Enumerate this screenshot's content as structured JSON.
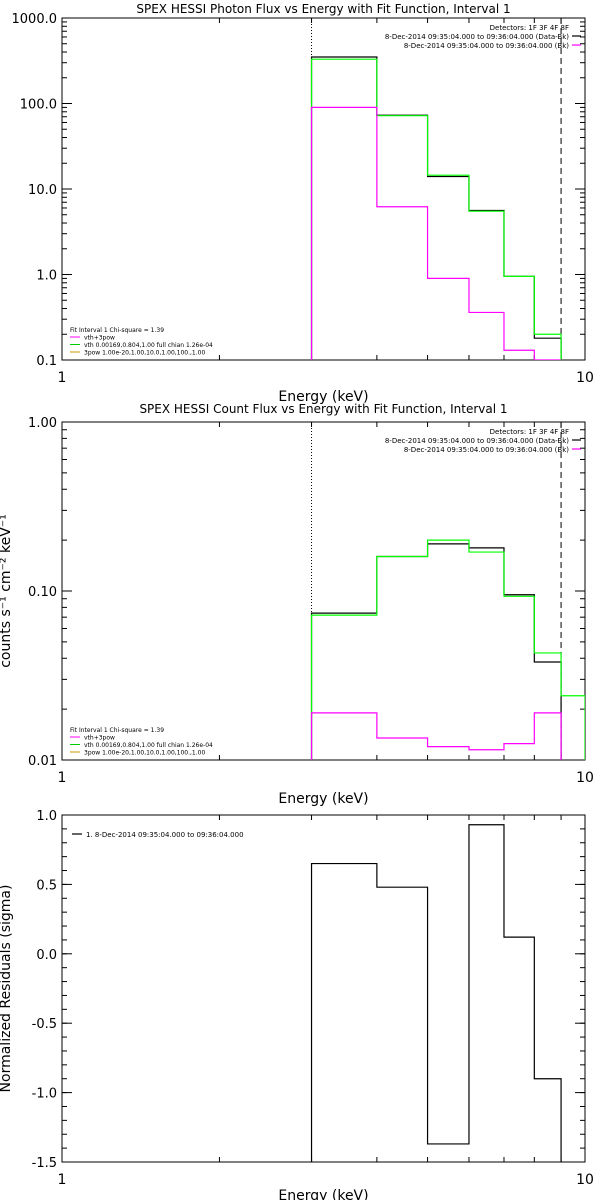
{
  "chart_data": [
    {
      "type": "line",
      "title": "SPEX HESSI Photon Flux vs Energy with Fit Function, Interval 1",
      "xlabel": "Energy (keV)",
      "ylabel": "",
      "xscale": "log",
      "yscale": "log",
      "xlim": [
        1,
        10
      ],
      "ylim": [
        0.1,
        1000
      ],
      "xticks": [
        {
          "v": 1,
          "label": "1"
        },
        {
          "v": 10,
          "label": "10"
        }
      ],
      "yticks": [
        {
          "v": 0.1,
          "label": "0.1"
        },
        {
          "v": 1,
          "label": "1.0"
        },
        {
          "v": 10,
          "label": "10.0"
        },
        {
          "v": 100,
          "label": "100.0"
        },
        {
          "v": 1000,
          "label": "1000.0"
        }
      ],
      "vlines": [
        {
          "x": 3.0,
          "style": "dotted"
        },
        {
          "x": 9.0,
          "style": "dashed"
        }
      ],
      "legend_position": "top-right",
      "legend": [
        "Detectors: 1F 3F 4F 8F",
        "8-Dec-2014 09:35:04.000 to 09:36:04.000 (Data-Bk)",
        "8-Dec-2014 09:35:04.000 to 09:36:04.000 (Bk)"
      ],
      "legend_colors": [
        "#000000",
        "#000000",
        "#ff00ff"
      ],
      "fit_position": "bottom-left",
      "fit_info": [
        {
          "text": "Fit Interval 1    Chi-square = 1.39",
          "color": "#000000"
        },
        {
          "text": "vth+3pow",
          "color": "#ff00ff"
        },
        {
          "text": "vth 0.00169,0.804,1.00  full chian 1.26e-04",
          "color": "#00cc00"
        },
        {
          "text": "3pow 1.00e-20,1.00,10.0,1.00,100.,1.00",
          "color": "#cc9900"
        }
      ],
      "edges": [
        3.0,
        3.5,
        4.0,
        4.5,
        5.0,
        5.5,
        6.0,
        6.5,
        7.0,
        7.5,
        8.0,
        8.5,
        9.0
      ],
      "series": [
        {
          "color": "#000000",
          "values": [
            350,
            350,
            73,
            73,
            14,
            14,
            5.6,
            5.6,
            0.95,
            0.95,
            0.18,
            0.18
          ]
        },
        {
          "color": "#00ff00",
          "values": [
            330,
            330,
            72,
            72,
            14.5,
            14.5,
            5.5,
            5.5,
            0.95,
            0.95,
            0.2,
            0.2
          ]
        },
        {
          "color": "#ff00ff",
          "values": [
            90,
            90,
            6.2,
            6.2,
            0.9,
            0.9,
            0.36,
            0.36,
            0.13,
            0.13,
            0.1,
            0.1
          ]
        }
      ]
    },
    {
      "type": "line",
      "title": "SPEX HESSI Count Flux vs Energy with Fit Function, Interval 1",
      "xlabel": "Energy (keV)",
      "ylabel": "counts s⁻¹ cm⁻² keV⁻¹",
      "xscale": "log",
      "yscale": "log",
      "xlim": [
        1,
        10
      ],
      "ylim": [
        0.01,
        1
      ],
      "xticks": [
        {
          "v": 1,
          "label": "1"
        },
        {
          "v": 10,
          "label": "10"
        }
      ],
      "yticks": [
        {
          "v": 0.01,
          "label": "0.01"
        },
        {
          "v": 0.1,
          "label": "0.10"
        },
        {
          "v": 1,
          "label": "1.00"
        }
      ],
      "vlines": [
        {
          "x": 3.0,
          "style": "dotted"
        },
        {
          "x": 9.0,
          "style": "dashed"
        }
      ],
      "legend_position": "top-right",
      "legend": [
        "Detectors: 1F 3F 4F 8F",
        "8-Dec-2014 09:35:04.000 to 09:36:04.000 (Data-Bk)",
        "8-Dec-2014 09:35:04.000 to 09:36:04.000 (Bk)"
      ],
      "legend_colors": [
        "#000000",
        "#000000",
        "#ff00ff"
      ],
      "fit_position": "bottom-left",
      "fit_info": [
        {
          "text": "Fit Interval 1    Chi-square = 1.39",
          "color": "#000000"
        },
        {
          "text": "vth+3pow",
          "color": "#ff00ff"
        },
        {
          "text": "vth 0.00169,0.804,1.00  full chian 1.26e-04",
          "color": "#00cc00"
        },
        {
          "text": "3pow 1.00e-20,1.00,10.0,1.00,100.,1.00",
          "color": "#cc9900"
        }
      ],
      "edges": [
        3.0,
        3.5,
        4.0,
        4.5,
        5.0,
        5.5,
        6.0,
        6.5,
        7.0,
        7.5,
        8.0,
        8.5,
        9.0,
        10.0
      ],
      "series": [
        {
          "color": "#000000",
          "values": [
            0.074,
            0.074,
            0.16,
            0.16,
            0.19,
            0.19,
            0.18,
            0.18,
            0.095,
            0.095,
            0.038,
            0.038
          ]
        },
        {
          "color": "#00ff00",
          "values": [
            0.072,
            0.072,
            0.16,
            0.16,
            0.2,
            0.2,
            0.17,
            0.17,
            0.093,
            0.093,
            0.043,
            0.043,
            0.024
          ]
        },
        {
          "color": "#ff00ff",
          "values": [
            0.019,
            0.019,
            0.0135,
            0.0135,
            0.012,
            0.012,
            0.0115,
            0.0115,
            0.0125,
            0.0125,
            0.019,
            0.019
          ]
        }
      ]
    },
    {
      "type": "line",
      "title": "",
      "xlabel": "Energy (keV)",
      "ylabel": "Normalized Residuals (sigma)",
      "xscale": "log",
      "yscale": "linear",
      "xlim": [
        1,
        10
      ],
      "ylim": [
        -1.5,
        1.0
      ],
      "xticks": [
        {
          "v": 1,
          "label": "1"
        },
        {
          "v": 10,
          "label": "10"
        }
      ],
      "yticks": [
        {
          "v": -1.5,
          "label": "-1.5"
        },
        {
          "v": -1.0,
          "label": "-1.0"
        },
        {
          "v": -0.5,
          "label": "-0.5"
        },
        {
          "v": 0.0,
          "label": "0.0"
        },
        {
          "v": 0.5,
          "label": "0.5"
        },
        {
          "v": 1.0,
          "label": "1.0"
        }
      ],
      "vlines": [],
      "legend_position": "top-left",
      "legend": [
        "1.  8-Dec-2014 09:35:04.000 to 09:36:04.000"
      ],
      "legend_colors": [
        "#000000"
      ],
      "fit_info": [],
      "edges": [
        3.0,
        3.5,
        4.0,
        4.5,
        5.0,
        5.5,
        6.0,
        6.5,
        7.0,
        7.5,
        8.0,
        8.5,
        9.0
      ],
      "series": [
        {
          "color": "#000000",
          "values": [
            0.65,
            0.65,
            0.48,
            0.48,
            -1.37,
            -1.37,
            0.93,
            0.93,
            0.12,
            0.12,
            -0.9,
            -0.9
          ]
        }
      ]
    }
  ]
}
